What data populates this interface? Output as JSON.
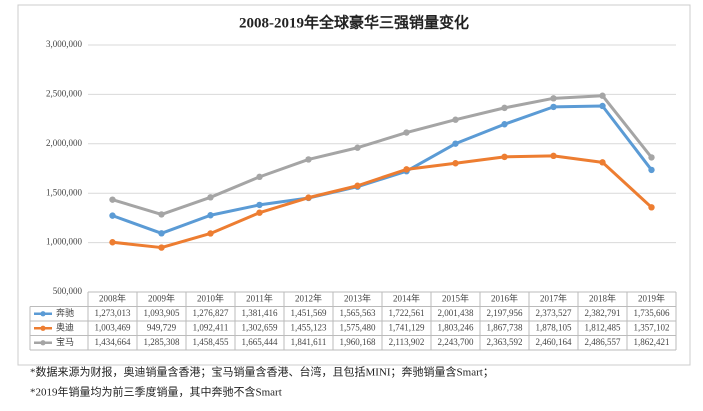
{
  "chart_data": {
    "type": "line",
    "title": "2008-2019年全球豪华三强销量变化",
    "categories": [
      "2008年",
      "2009年",
      "2010年",
      "2011年",
      "2012年",
      "2013年",
      "2014年",
      "2015年",
      "2016年",
      "2017年",
      "2018年",
      "2019年"
    ],
    "series": [
      {
        "name": "奔驰",
        "color": "#5b9bd5",
        "values": [
          1273013,
          1093905,
          1276827,
          1381416,
          1451569,
          1565563,
          1722561,
          2001438,
          2197956,
          2373527,
          2382791,
          1735606
        ],
        "value_labels": [
          "1,273,013",
          "1,093,905",
          "1,276,827",
          "1,381,416",
          "1,451,569",
          "1,565,563",
          "1,722,561",
          "2,001,438",
          "2,197,956",
          "2,373,527",
          "2,382,791",
          "1,735,606"
        ]
      },
      {
        "name": "奥迪",
        "color": "#ed7d31",
        "values": [
          1003469,
          949729,
          1092411,
          1302659,
          1455123,
          1575480,
          1741129,
          1803246,
          1867738,
          1878105,
          1812485,
          1357102
        ],
        "value_labels": [
          "1,003,469",
          "949,729",
          "1,092,411",
          "1,302,659",
          "1,455,123",
          "1,575,480",
          "1,741,129",
          "1,803,246",
          "1,867,738",
          "1,878,105",
          "1,812,485",
          "1,357,102"
        ]
      },
      {
        "name": "宝马",
        "color": "#a5a5a5",
        "values": [
          1434664,
          1285308,
          1458455,
          1665444,
          1841611,
          1960168,
          2113902,
          2243700,
          2363592,
          2460164,
          2486557,
          1862421
        ],
        "value_labels": [
          "1,434,664",
          "1,285,308",
          "1,458,455",
          "1,665,444",
          "1,841,611",
          "1,960,168",
          "2,113,902",
          "2,243,700",
          "2,363,592",
          "2,460,164",
          "2,486,557",
          "1,862,421"
        ]
      }
    ],
    "ylim": [
      500000,
      3000000
    ],
    "yticks": [
      {
        "value": 500000,
        "label": "500,000"
      },
      {
        "value": 1000000,
        "label": "1,000,000"
      },
      {
        "value": 1500000,
        "label": "1,500,000"
      },
      {
        "value": 2000000,
        "label": "2,000,000"
      },
      {
        "value": 2500000,
        "label": "2,500,000"
      },
      {
        "value": 3000000,
        "label": "3,000,000"
      }
    ],
    "grid": true,
    "notes": [
      "*数据来源为财报，奥迪销量含香港；宝马销量含香港、台湾，且包括MINI；奔驰销量含Smart；",
      "*2019年销量均为前三季度销量，其中奔驰不含Smart"
    ]
  }
}
